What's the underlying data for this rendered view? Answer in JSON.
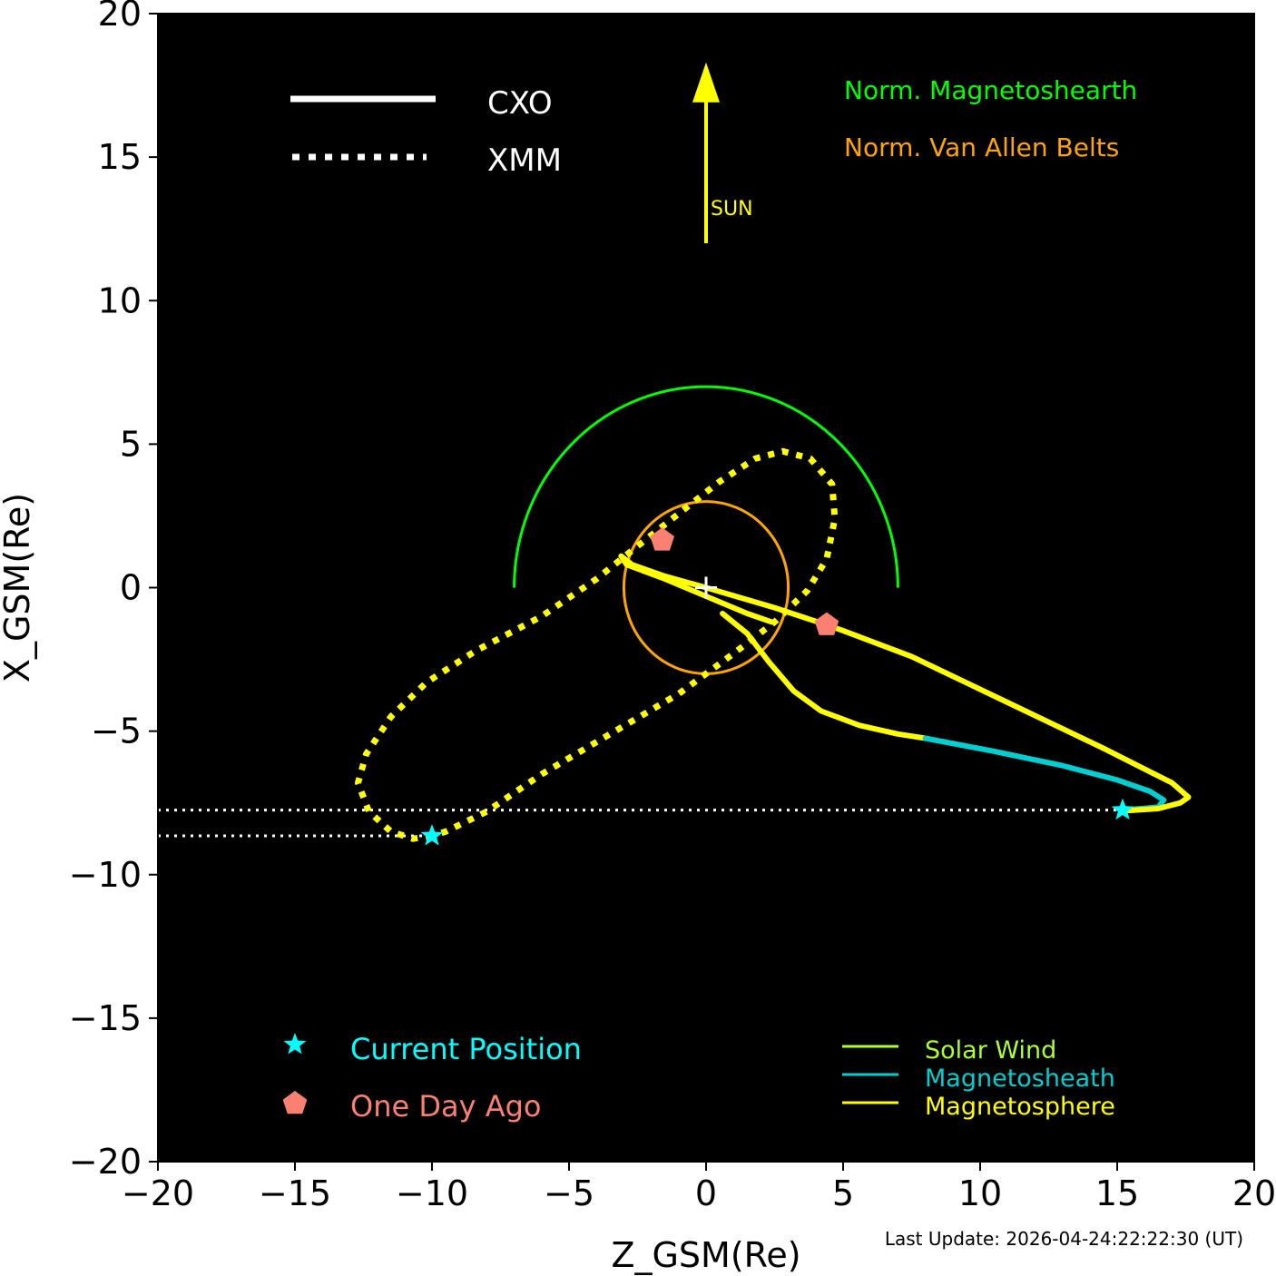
{
  "chart_data": {
    "type": "line",
    "xlabel": "Z_GSM(Re)",
    "ylabel": "X_GSM(Re)",
    "xlim": [
      -20,
      20
    ],
    "ylim": [
      -20,
      20
    ],
    "xticks": [
      -20,
      -15,
      -10,
      -5,
      0,
      5,
      10,
      15,
      20
    ],
    "yticks": [
      -20,
      -15,
      -10,
      -5,
      0,
      5,
      10,
      15,
      20
    ],
    "tick_labels_x": [
      "−20",
      "−15",
      "−10",
      "−5",
      "0",
      "5",
      "10",
      "15",
      "20"
    ],
    "tick_labels_y": [
      "−20",
      "−15",
      "−10",
      "−5",
      "0",
      "5",
      "10",
      "15",
      "20"
    ],
    "background": "#000000",
    "grid": false,
    "update_text": "Last Update: 2026-04-24:22:22:30 (UT)",
    "line_style_legend": [
      {
        "label": "CXO",
        "style": "solid"
      },
      {
        "label": "XMM",
        "style": "dotted"
      }
    ],
    "sun_arrow": {
      "label": "SUN",
      "color": "#ffff00",
      "z": 0,
      "from_x": 12,
      "to_x": 18.3
    },
    "boundaries": [
      {
        "name": "Norm. Magnetoshearth",
        "color": "#00ff00",
        "center": [
          0,
          0
        ],
        "radius": 7,
        "half": true
      },
      {
        "name": "Norm. Van Allen Belts",
        "color": "#ffa500",
        "center": [
          0,
          0
        ],
        "radius_z": 3,
        "radius_x": 3
      }
    ],
    "series": [
      {
        "name": "CXO",
        "style": "solid",
        "segments": [
          {
            "region": "Magnetosphere",
            "color": "#ffff00",
            "points": [
              [
                0.6,
                -0.9
              ],
              [
                1.5,
                -1.6
              ],
              [
                2.3,
                -2.6
              ],
              [
                3.2,
                -3.6
              ],
              [
                4.2,
                -4.3
              ],
              [
                5.6,
                -4.8
              ],
              [
                7.0,
                -5.1
              ],
              [
                8.0,
                -5.25
              ]
            ]
          },
          {
            "region": "Magnetosheath",
            "color": "#00ced1",
            "points": [
              [
                8.0,
                -5.25
              ],
              [
                10.5,
                -5.7
              ],
              [
                13.0,
                -6.2
              ],
              [
                15.0,
                -6.7
              ],
              [
                16.2,
                -7.1
              ],
              [
                16.7,
                -7.4
              ],
              [
                16.5,
                -7.65
              ],
              [
                15.2,
                -7.75
              ]
            ]
          },
          {
            "region": "Magnetosphere",
            "color": "#ffff00",
            "points": [
              [
                15.2,
                -7.78
              ],
              [
                16.5,
                -7.7
              ],
              [
                17.3,
                -7.5
              ],
              [
                17.6,
                -7.3
              ],
              [
                17.0,
                -6.8
              ],
              [
                14.5,
                -5.6
              ],
              [
                11.0,
                -4.0
              ],
              [
                7.5,
                -2.4
              ],
              [
                5.0,
                -1.5
              ],
              [
                4.4,
                -1.3
              ],
              [
                2.5,
                -0.7
              ],
              [
                0.0,
                0.0
              ],
              [
                -1.5,
                0.4
              ],
              [
                -2.7,
                0.8
              ],
              [
                -3.1,
                1.1
              ],
              [
                -2.9,
                0.8
              ],
              [
                -1.5,
                0.3
              ],
              [
                0.0,
                -0.3
              ],
              [
                1.5,
                -0.9
              ],
              [
                2.4,
                -1.2
              ]
            ]
          }
        ],
        "current_position": [
          15.2,
          -7.75
        ],
        "one_day_ago": [
          4.4,
          -1.3
        ],
        "current_x_line": -7.75
      },
      {
        "name": "XMM",
        "style": "dotted",
        "segments": [
          {
            "region": "Magnetosphere",
            "color": "#ffff00",
            "points": [
              [
                -10.0,
                -8.65
              ],
              [
                -10.7,
                -8.75
              ],
              [
                -11.5,
                -8.5
              ],
              [
                -12.3,
                -7.8
              ],
              [
                -12.7,
                -6.8
              ],
              [
                -12.4,
                -5.8
              ],
              [
                -11.5,
                -4.5
              ],
              [
                -10.2,
                -3.3
              ],
              [
                -8.4,
                -2.2
              ],
              [
                -6.0,
                -1.0
              ],
              [
                -4.0,
                0.3
              ],
              [
                -2.3,
                1.6
              ],
              [
                -0.7,
                2.8
              ],
              [
                0.5,
                3.7
              ],
              [
                1.8,
                4.5
              ],
              [
                2.8,
                4.75
              ],
              [
                3.8,
                4.5
              ],
              [
                4.6,
                3.6
              ],
              [
                4.7,
                2.4
              ],
              [
                4.4,
                1.0
              ],
              [
                3.7,
                -0.1
              ],
              [
                2.5,
                -1.2
              ],
              [
                1.0,
                -2.3
              ],
              [
                -1.0,
                -3.7
              ],
              [
                -3.5,
                -5.1
              ],
              [
                -6.0,
                -6.5
              ],
              [
                -8.0,
                -7.8
              ],
              [
                -9.5,
                -8.5
              ],
              [
                -10.0,
                -8.65
              ]
            ]
          }
        ],
        "current_position": [
          -10.0,
          -8.65
        ],
        "one_day_ago": [
          -1.6,
          1.65
        ],
        "current_x_line": -8.65
      }
    ],
    "marker_legend": [
      {
        "label": "Current Position",
        "marker": "star",
        "color": "#00ffff"
      },
      {
        "label": "One Day Ago",
        "marker": "pentagon",
        "color": "#fa8072"
      }
    ],
    "region_legend": [
      {
        "label": "Solar Wind",
        "color": "#adff2f"
      },
      {
        "label": "Magnetosheath",
        "color": "#00ced1"
      },
      {
        "label": "Magnetosphere",
        "color": "#ffff00"
      }
    ],
    "earth_marker": {
      "symbol": "plus",
      "color": "#ffffff",
      "z": 0,
      "x": 0
    }
  }
}
